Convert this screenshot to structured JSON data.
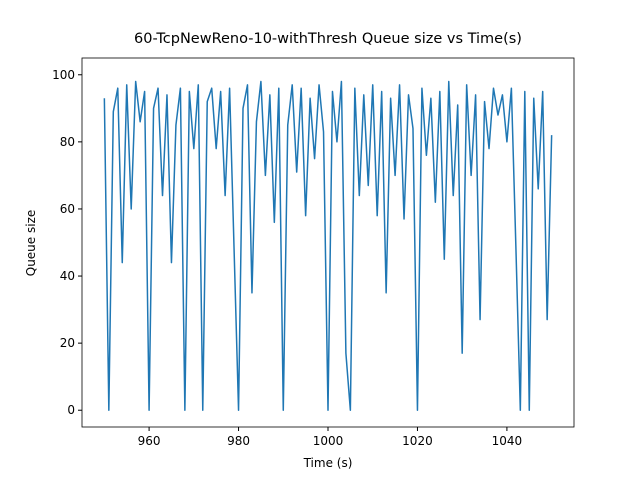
{
  "chart_data": {
    "type": "line",
    "title": "60-TcpNewReno-10-withThresh Queue size vs Time(s)",
    "x_label": "Time (s)",
    "y_label": "Queue size",
    "x": [
      950,
      951,
      952,
      953,
      954,
      955,
      956,
      957,
      958,
      959,
      960,
      961,
      962,
      963,
      964,
      965,
      966,
      967,
      968,
      969,
      970,
      971,
      972,
      973,
      974,
      975,
      976,
      977,
      978,
      979,
      980,
      981,
      982,
      983,
      984,
      985,
      986,
      987,
      988,
      989,
      990,
      991,
      992,
      993,
      994,
      995,
      996,
      997,
      998,
      999,
      1000,
      1001,
      1002,
      1003,
      1004,
      1005,
      1006,
      1007,
      1008,
      1009,
      1010,
      1011,
      1012,
      1013,
      1014,
      1015,
      1016,
      1017,
      1018,
      1019,
      1020,
      1021,
      1022,
      1023,
      1024,
      1025,
      1026,
      1027,
      1028,
      1029,
      1030,
      1031,
      1032,
      1033,
      1034,
      1035,
      1036,
      1037,
      1038,
      1039,
      1040,
      1041,
      1042,
      1043,
      1044,
      1045,
      1046,
      1047,
      1048,
      1049,
      1050
    ],
    "series": [
      {
        "color": "#1f77b4",
        "values": [
          93,
          0,
          89,
          96,
          44,
          97,
          60,
          98,
          86,
          95,
          0,
          90,
          96,
          64,
          94,
          44,
          85,
          96,
          0,
          95,
          78,
          97,
          0,
          92,
          96,
          78,
          95,
          64,
          96,
          48,
          0,
          90,
          97,
          35,
          86,
          98,
          70,
          94,
          56,
          96,
          0,
          85,
          97,
          71,
          96,
          58,
          93,
          75,
          97,
          83,
          0,
          95,
          80,
          98,
          17,
          0,
          96,
          64,
          94,
          67,
          97,
          58,
          95,
          35,
          93,
          70,
          97,
          57,
          94,
          84,
          0,
          96,
          76,
          93,
          62,
          95,
          45,
          98,
          64,
          91,
          17,
          97,
          70,
          94,
          27,
          92,
          78,
          96,
          88,
          94,
          80,
          96,
          49,
          0,
          95,
          0,
          93,
          66,
          95,
          27,
          82
        ]
      }
    ],
    "xlim": [
      945,
      1055
    ],
    "ylim": [
      -5,
      105
    ],
    "xticks": [
      960,
      980,
      1000,
      1020,
      1040
    ],
    "yticks": [
      0,
      20,
      40,
      60,
      80,
      100
    ]
  }
}
